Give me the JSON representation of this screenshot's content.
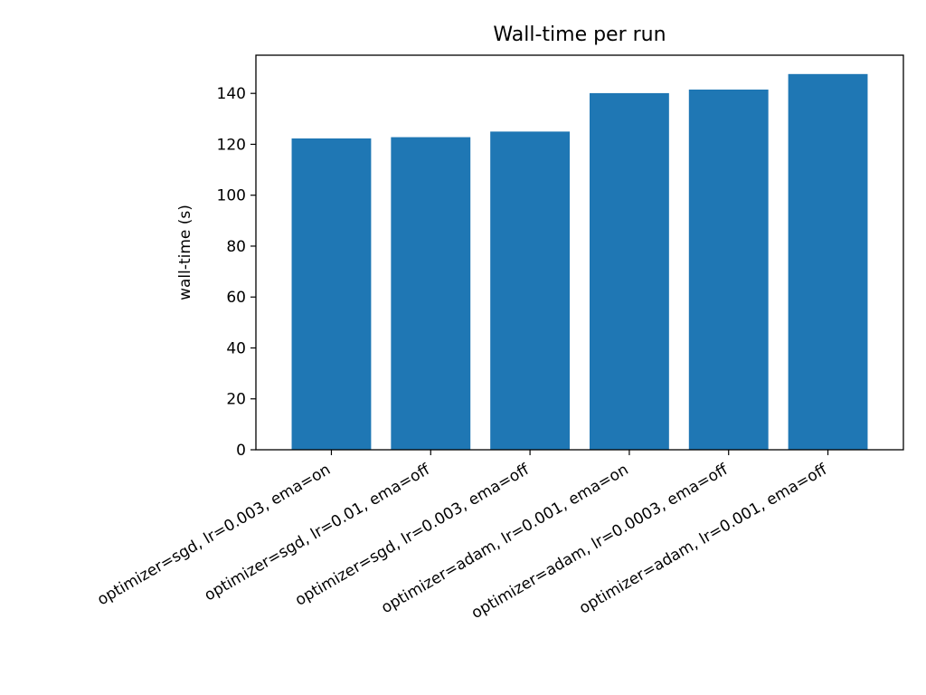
{
  "chart_data": {
    "type": "bar",
    "title": "Wall-time per run",
    "xlabel": "",
    "ylabel": "wall-time (s)",
    "categories": [
      "optimizer=sgd, lr=0.003, ema=on",
      "optimizer=sgd, lr=0.01, ema=off",
      "optimizer=sgd, lr=0.003, ema=off",
      "optimizer=adam, lr=0.001, ema=on",
      "optimizer=adam, lr=0.0003, ema=off",
      "optimizer=adam, lr=0.001, ema=off"
    ],
    "values": [
      122.3,
      122.8,
      125.0,
      140.1,
      141.5,
      147.6
    ],
    "ylim": [
      0,
      155
    ],
    "yticks": [
      0,
      20,
      40,
      60,
      80,
      100,
      120,
      140
    ],
    "grid": false,
    "bar_color": "#1f77b4"
  }
}
